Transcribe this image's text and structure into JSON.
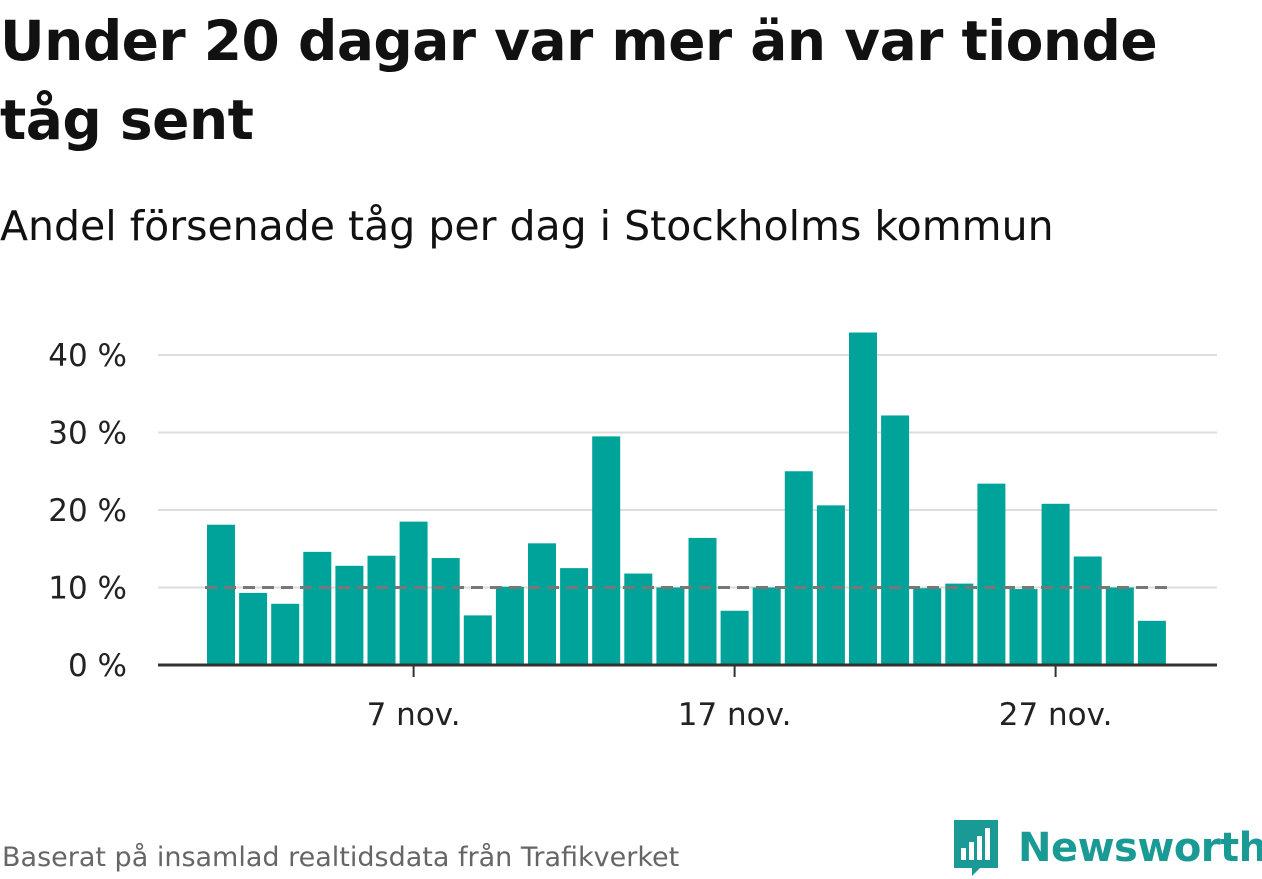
{
  "title": "Under 20 dagar var mer än var tionde tåg sent",
  "subtitle": "Andel försenade tåg per dag i Stockholms kommun",
  "source": "Baserat på insamlad realtidsdata från Trafikverket",
  "brand": {
    "name": "Newsworthy",
    "logo_icon": "newsworthy-bar-chart-logo",
    "color": "#1a9a94"
  },
  "colors": {
    "bar": "#00a39a",
    "grid": "#dddddd",
    "axis": "#333333",
    "reference_line": "#777777"
  },
  "chart_data": {
    "type": "bar",
    "xlabel": "",
    "ylabel": "",
    "y_unit": "%",
    "ylim": [
      0,
      40
    ],
    "yticks": [
      0,
      10,
      20,
      30,
      40
    ],
    "ytick_labels": [
      "0 %",
      "10 %",
      "20 %",
      "30 %",
      "40 %"
    ],
    "x": [
      "1 nov.",
      "2 nov.",
      "3 nov.",
      "4 nov.",
      "5 nov.",
      "6 nov.",
      "7 nov.",
      "8 nov.",
      "9 nov.",
      "10 nov.",
      "11 nov.",
      "12 nov.",
      "13 nov.",
      "14 nov.",
      "15 nov.",
      "16 nov.",
      "17 nov.",
      "18 nov.",
      "19 nov.",
      "20 nov.",
      "21 nov.",
      "22 nov.",
      "23 nov.",
      "24 nov.",
      "25 nov.",
      "26 nov.",
      "27 nov.",
      "28 nov.",
      "29 nov.",
      "30 nov."
    ],
    "values": [
      18.1,
      9.3,
      7.9,
      14.6,
      12.8,
      14.1,
      18.5,
      13.8,
      6.4,
      10.1,
      15.7,
      12.5,
      29.5,
      11.8,
      10.0,
      16.4,
      7.0,
      10.0,
      25.0,
      20.6,
      42.9,
      32.2,
      9.9,
      10.5,
      23.4,
      9.8,
      20.8,
      14.0,
      10.0,
      5.7
    ],
    "xticks": [
      "7 nov.",
      "17 nov.",
      "27 nov."
    ],
    "reference_line": {
      "value": 10,
      "style": "dashed"
    },
    "grid": true,
    "legend": false
  }
}
